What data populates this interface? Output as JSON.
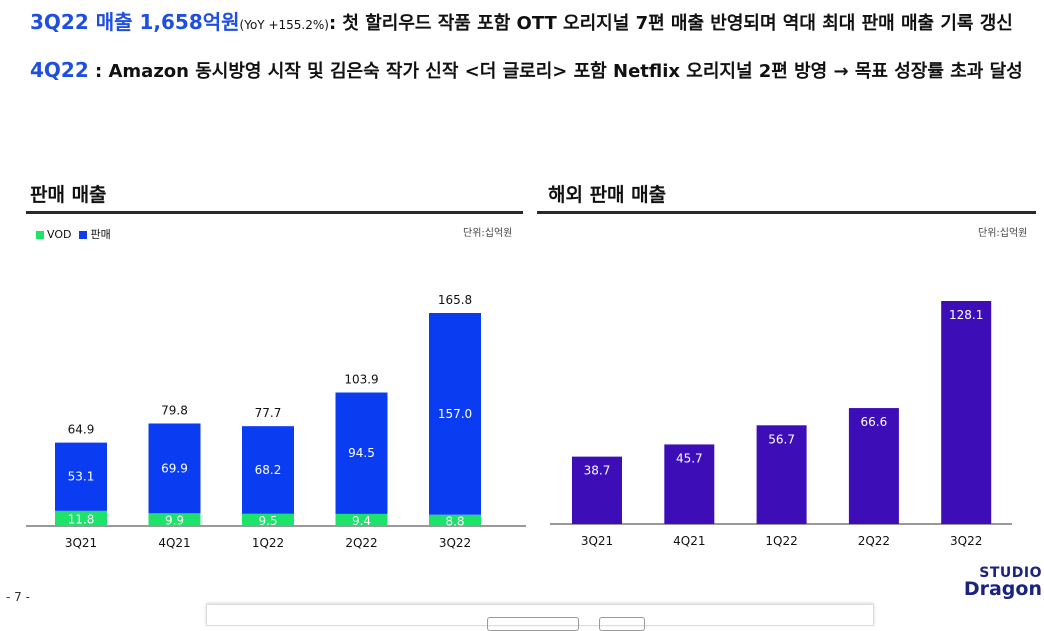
{
  "headline1": {
    "lead": "3Q22 매출 1,658억원",
    "yoy": "(YoY +155.2%)",
    "rest": ": 첫 할리우드 작품 포함 OTT 오리지널 7편 매출 반영되며 역대 최대 판매 매출 기록 갱신"
  },
  "headline2": {
    "lead": "4Q22",
    "rest": " : Amazon 동시방영 시작 및 김은숙 작가 신작  <더 글로리> 포함 Netflix 오리지널 2편 방영 → 목표 성장률 초과 달성"
  },
  "left_section": {
    "title": "판매 매출",
    "unit": "단위:십억원"
  },
  "right_section": {
    "title": "해외 판매 매출",
    "unit": "단위:십억원"
  },
  "page_number": "- 7 -",
  "logo": {
    "line1": "STUDIO",
    "line2": "Dragon"
  },
  "colors": {
    "vod": "#1de36b",
    "sales": "#0a3cf2",
    "overseas": "#3d0db8",
    "headline_blue": "#1f4fe0"
  },
  "chart_data": [
    {
      "type": "bar",
      "stacked": true,
      "title": "판매 매출",
      "categories": [
        "3Q21",
        "4Q21",
        "1Q22",
        "2Q22",
        "3Q22"
      ],
      "series": [
        {
          "name": "VOD",
          "values": [
            11.8,
            9.9,
            9.5,
            9.4,
            8.8
          ]
        },
        {
          "name": "판매",
          "values": [
            53.1,
            69.9,
            68.2,
            94.5,
            157.0
          ]
        }
      ],
      "totals": [
        64.9,
        79.8,
        77.7,
        103.9,
        165.8
      ],
      "total_labels": [
        "64.9",
        "79.8",
        "77.7",
        "103.9",
        "165.8"
      ],
      "value_labels": {
        "VOD": [
          "11.8",
          "9.9",
          "9.5",
          "9.4",
          "8.8"
        ],
        "판매": [
          "53.1",
          "69.9",
          "68.2",
          "94.5",
          "157.0"
        ]
      },
      "legend": "top-left",
      "ylim": [
        0,
        165.8
      ],
      "grid": false
    },
    {
      "type": "bar",
      "title": "해외 판매 매출",
      "categories": [
        "3Q21",
        "4Q21",
        "1Q22",
        "2Q22",
        "3Q22"
      ],
      "values": [
        38.7,
        45.7,
        56.7,
        66.6,
        128.1
      ],
      "value_labels": [
        "38.7",
        "45.7",
        "56.7",
        "66.6",
        "128.1"
      ],
      "ylim": [
        0,
        128.1
      ],
      "grid": false
    }
  ]
}
